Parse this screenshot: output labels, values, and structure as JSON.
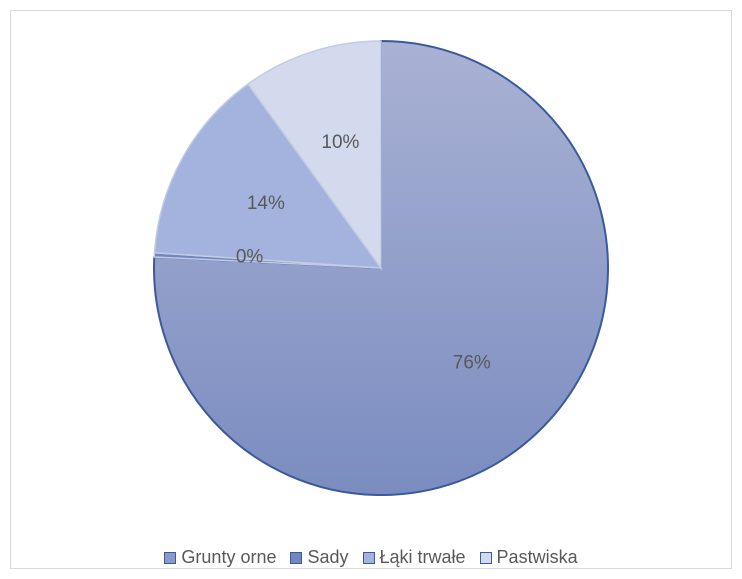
{
  "chart_data": {
    "type": "pie",
    "categories": [
      "Grunty orne",
      "Sady",
      "Łąki trwałe",
      "Pastwiska"
    ],
    "values": [
      76,
      0.3,
      14,
      10
    ],
    "labels": [
      "76%",
      "0%",
      "14%",
      "10%"
    ],
    "title": "",
    "legend": "bottom",
    "colors": {
      "fills": [
        "#8b9ac6",
        "#6f86c0",
        "#a3b3dd",
        "#d3daee"
      ],
      "edge": "#3b5a9a",
      "seam": "#c2cbe3"
    }
  }
}
